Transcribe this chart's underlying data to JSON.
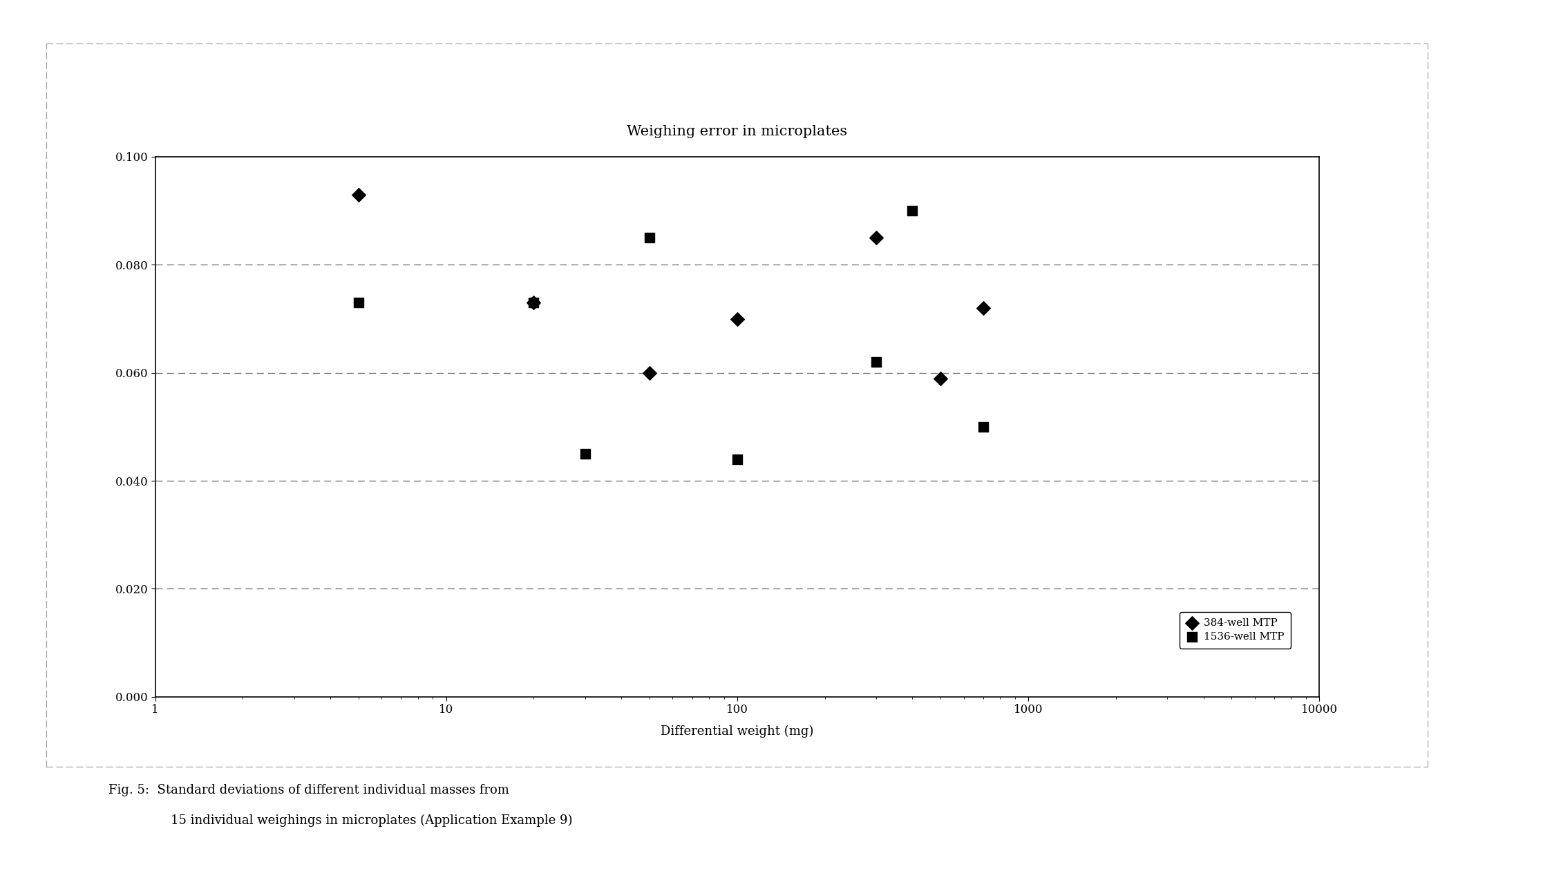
{
  "title": "Weighing error in microplates",
  "xlabel": "Differential weight (mg)",
  "series_384": {
    "label": "384-well MTP",
    "x": [
      5,
      20,
      50,
      100,
      300,
      500,
      700
    ],
    "y": [
      0.093,
      0.073,
      0.06,
      0.07,
      0.085,
      0.059,
      0.072
    ],
    "marker": "D",
    "color": "#000000"
  },
  "series_1536": {
    "label": "1536-well MTP",
    "x": [
      5,
      20,
      30,
      50,
      100,
      300,
      400,
      700
    ],
    "y": [
      0.073,
      0.073,
      0.045,
      0.085,
      0.044,
      0.062,
      0.09,
      0.05
    ],
    "marker": "s",
    "color": "#000000"
  },
  "ylim": [
    0.0,
    0.1
  ],
  "yticks": [
    0.0,
    0.02,
    0.04,
    0.06,
    0.08,
    0.1
  ],
  "xlim": [
    1,
    10000
  ],
  "hgrid": [
    0.02,
    0.04,
    0.06,
    0.08
  ],
  "background_color": "#ffffff",
  "caption_line1": "Fig. 5:  Standard deviations of different individual masses from",
  "caption_line2": "15 individual weighings in microplates (Application Example 9)"
}
